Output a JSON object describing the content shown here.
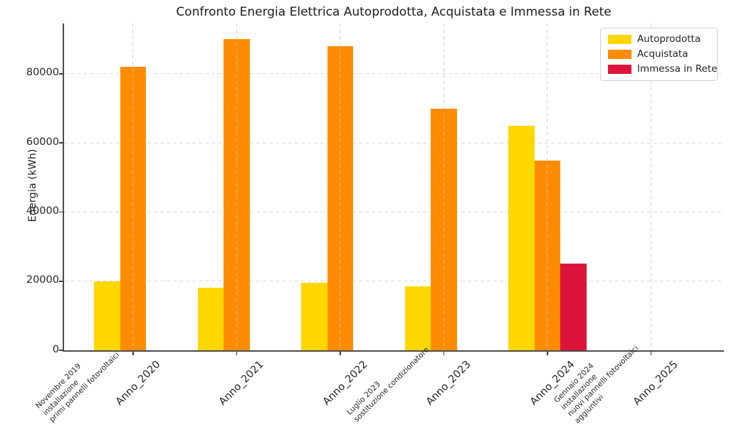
{
  "title": "Confronto Energia Elettrica Autoprodotta, Acquistata e Immessa in Rete",
  "chart_data": {
    "type": "bar",
    "title": "Confronto Energia Elettrica Autoprodotta, Acquistata e Immessa in Rete",
    "xlabel": "",
    "ylabel": "Energia (kWh)",
    "ylim": [
      0,
      94600
    ],
    "yticks": [
      0,
      20000,
      40000,
      60000,
      80000
    ],
    "grid": {
      "style": "dashed",
      "x": true,
      "y": true
    },
    "legend_position": "upper right",
    "categories": [
      "Anno_2020",
      "Anno_2021",
      "Anno_2022",
      "Anno_2023",
      "Anno_2024",
      "Anno_2025"
    ],
    "series": [
      {
        "name": "Autoprodotta",
        "color": "#FFD700",
        "values": [
          20000,
          18000,
          19500,
          18500,
          65000,
          0
        ]
      },
      {
        "name": "Acquistata",
        "color": "#FF8C00",
        "values": [
          82000,
          90000,
          88000,
          70000,
          55000,
          0
        ]
      },
      {
        "name": "Immessa in Rete",
        "color": "#DC143C",
        "values": [
          0,
          0,
          0,
          0,
          25000,
          0
        ]
      }
    ],
    "annotations": [
      {
        "pos": 0,
        "slot": "before Anno_2020",
        "text": "Novembre 2019\ninstallazione\nprimi pannelli fotovoltaici"
      },
      {
        "pos": 6,
        "slot": "between Anno_2022 and Anno_2023",
        "text": "Luglio 2023\nsostituzione condizionatore"
      },
      {
        "pos": 10,
        "slot": "between Anno_2024 and Anno_2025",
        "text": "Gennaio 2024\ninstallazione\nnuovi pannelli fotovoltaici\naggiuntivi"
      }
    ]
  }
}
